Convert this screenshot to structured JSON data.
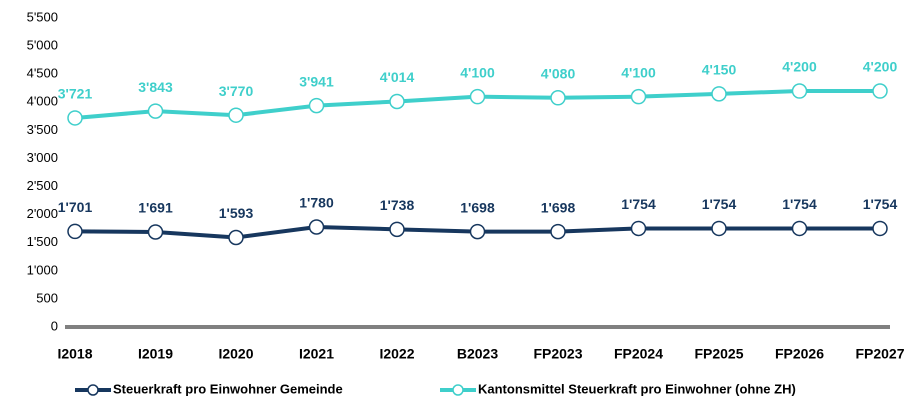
{
  "chart_data": {
    "type": "line",
    "categories": [
      "I2018",
      "I2019",
      "I2020",
      "I2021",
      "I2022",
      "B2023",
      "FP2023",
      "FP2024",
      "FP2025",
      "FP2026",
      "FP2027"
    ],
    "series": [
      {
        "name": "Steuerkraft pro Einwohner Gemeinde",
        "color": "#17375e",
        "values": [
          1701,
          1691,
          1593,
          1780,
          1738,
          1698,
          1698,
          1754,
          1754,
          1754,
          1754
        ],
        "value_labels": [
          "1'701",
          "1'691",
          "1'593",
          "1'780",
          "1'738",
          "1'698",
          "1'698",
          "1'754",
          "1'754",
          "1'754",
          "1'754"
        ]
      },
      {
        "name": "Kantonsmittel Steuerkraft pro Einwohner (ohne ZH)",
        "color": "#3fcfcb",
        "values": [
          3721,
          3843,
          3770,
          3941,
          4014,
          4100,
          4080,
          4100,
          4150,
          4200,
          4200
        ],
        "value_labels": [
          "3'721",
          "3'843",
          "3'770",
          "3'941",
          "4'014",
          "4'100",
          "4'080",
          "4'100",
          "4'150",
          "4'200",
          "4'200"
        ]
      }
    ],
    "ylim": [
      0,
      5500
    ],
    "yticks": [
      0,
      500,
      {
        "value": 1000,
        "label": "1'000"
      },
      {
        "value": 1500,
        "label": "1'500"
      },
      {
        "value": 2000,
        "label": "2'000"
      },
      {
        "value": 2500,
        "label": "2'500"
      },
      {
        "value": 3000,
        "label": "3'000"
      },
      {
        "value": 3500,
        "label": "3'500"
      },
      {
        "value": 4000,
        "label": "4'000"
      },
      {
        "value": 4500,
        "label": "4'500"
      },
      {
        "value": 5000,
        "label": "5'000"
      },
      {
        "value": 5500,
        "label": "5'500"
      }
    ],
    "grid": false,
    "legend": "bottom"
  }
}
